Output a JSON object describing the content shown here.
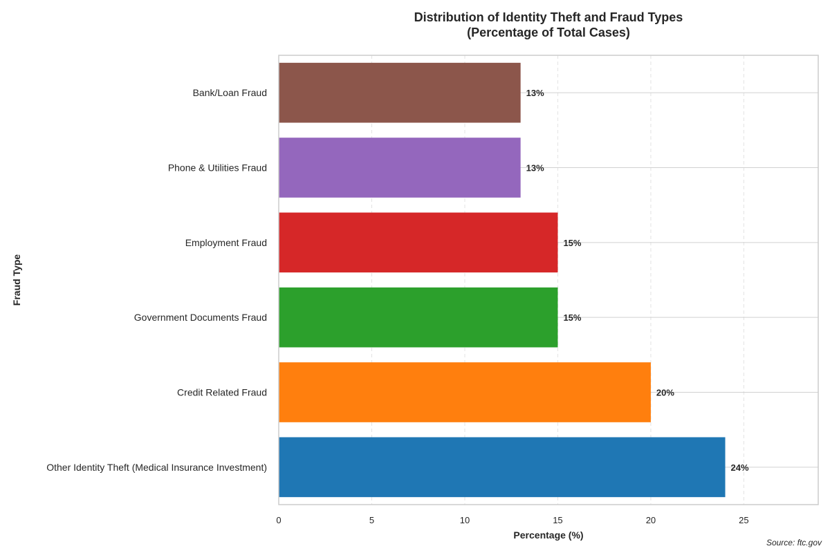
{
  "chart_data": {
    "type": "bar",
    "orientation": "horizontal",
    "title_lines": [
      "Distribution of Identity Theft and Fraud Types",
      "(Percentage of Total Cases)"
    ],
    "xlabel": "Percentage (%)",
    "ylabel": "Fraud Type",
    "xlim": [
      0,
      29
    ],
    "xticks": [
      0,
      5,
      10,
      15,
      20,
      25
    ],
    "grid": "x-dashed",
    "categories": [
      "Other Identity Theft (Medical Insurance Investment)",
      "Credit Related Fraud",
      "Government Documents Fraud",
      "Employment Fraud",
      "Phone & Utilities Fraud",
      "Bank/Loan Fraud"
    ],
    "values": [
      24,
      20,
      15,
      15,
      13,
      13
    ],
    "value_labels": [
      "24%",
      "20%",
      "15%",
      "15%",
      "13%",
      "13%"
    ],
    "colors": [
      "#1f77b4",
      "#ff7f0e",
      "#2ca02c",
      "#d62728",
      "#9467bd",
      "#8c564b"
    ]
  },
  "source": "Source: ftc.gov"
}
